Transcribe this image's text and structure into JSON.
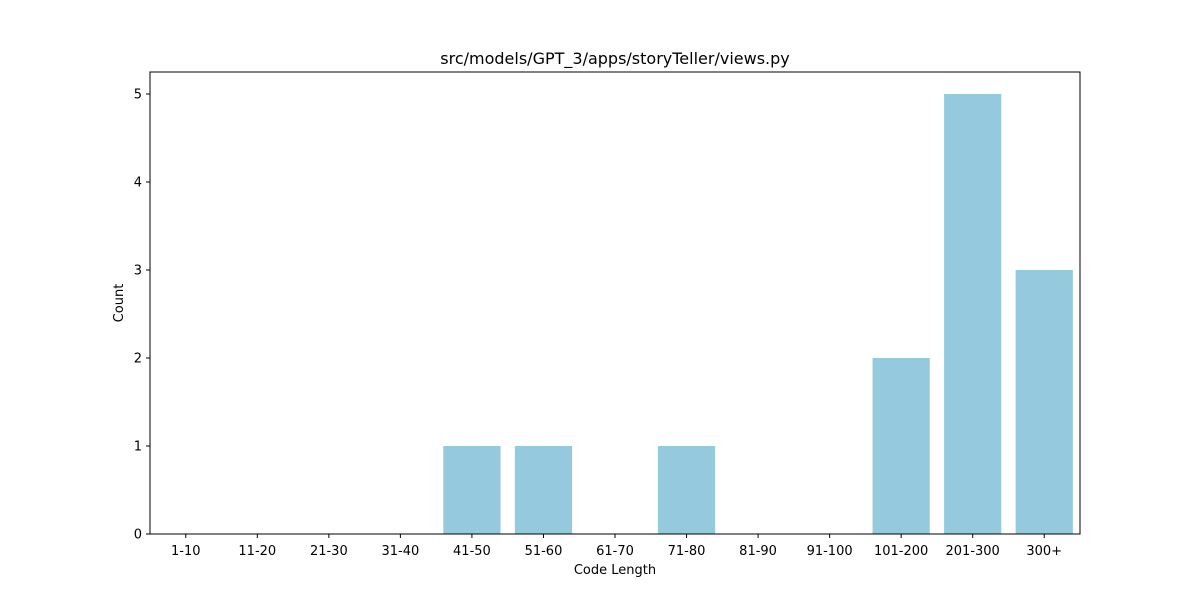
{
  "chart_data": {
    "type": "bar",
    "title": "src/models/GPT_3/apps/storyTeller/views.py",
    "xlabel": "Code Length",
    "ylabel": "Count",
    "categories": [
      "1-10",
      "11-20",
      "21-30",
      "31-40",
      "41-50",
      "51-60",
      "61-70",
      "71-80",
      "81-90",
      "91-100",
      "101-200",
      "201-300",
      "300+"
    ],
    "values": [
      0,
      0,
      0,
      0,
      1,
      1,
      0,
      1,
      0,
      0,
      2,
      5,
      3
    ],
    "ylim": [
      0,
      5.25
    ],
    "yticks": [
      0,
      1,
      2,
      3,
      4,
      5
    ],
    "grid": false,
    "bar_color": "#95c9de"
  }
}
